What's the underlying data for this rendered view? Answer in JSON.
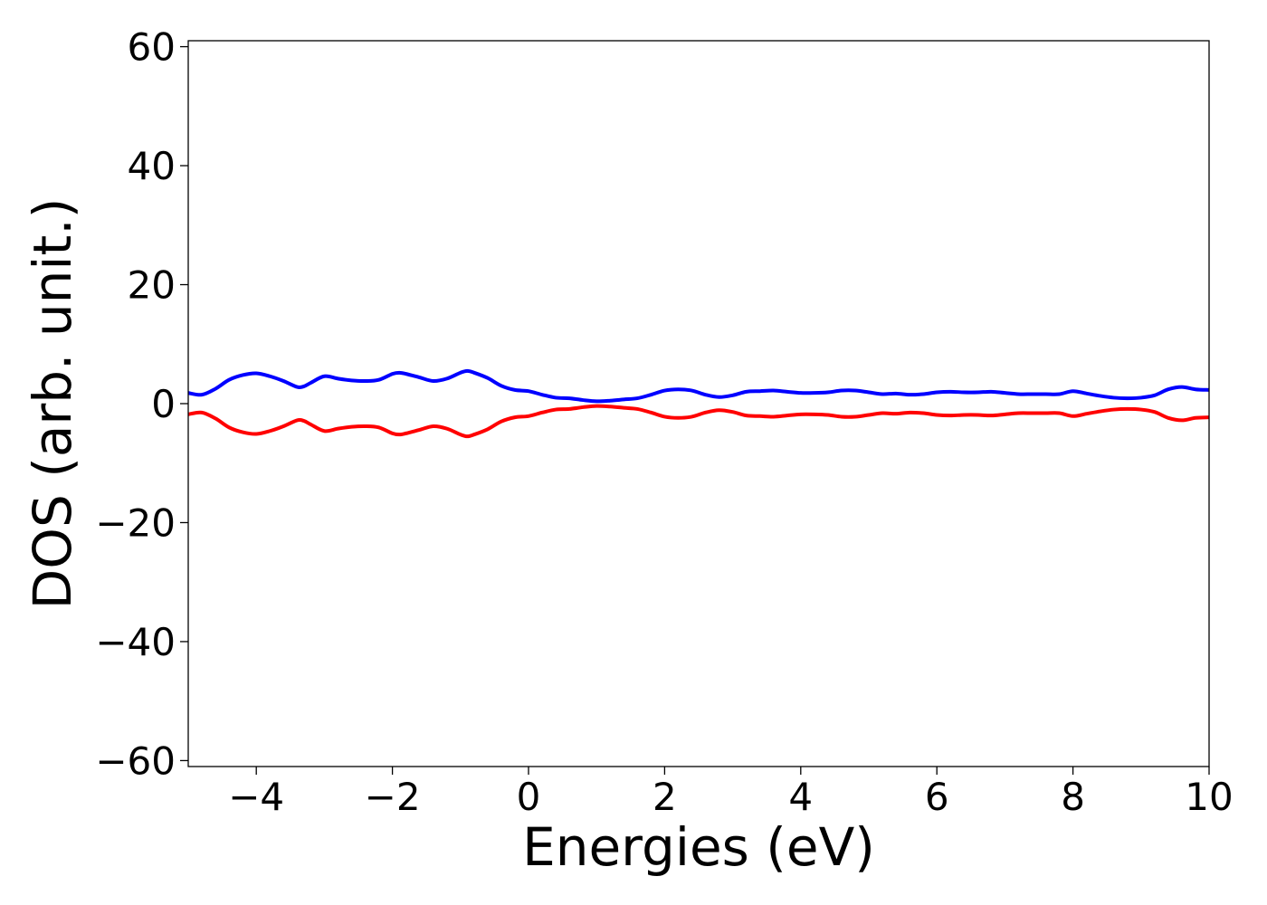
{
  "chart_data": {
    "type": "line",
    "xlabel": "Energies (eV)",
    "ylabel": "DOS (arb. unit.)",
    "xlim": [
      -5,
      10
    ],
    "ylim": [
      -61,
      61
    ],
    "xticks": [
      -4,
      -2,
      0,
      2,
      4,
      6,
      8,
      10
    ],
    "yticks": [
      60,
      40,
      20,
      0,
      -20,
      -40,
      -60
    ],
    "xtick_labels": [
      "−4",
      "−2",
      "0",
      "2",
      "4",
      "6",
      "8",
      "10"
    ],
    "ytick_labels": [
      "60",
      "40",
      "20",
      "0",
      "−20",
      "−40",
      "−60"
    ],
    "grid": false,
    "legend": null,
    "series": [
      {
        "color": "#0000ff",
        "x": [
          -5.0,
          -4.8,
          -4.6,
          -4.4,
          -4.2,
          -4.0,
          -3.8,
          -3.6,
          -3.4,
          -3.3,
          -3.2,
          -3.0,
          -2.8,
          -2.6,
          -2.4,
          -2.2,
          -2.0,
          -1.9,
          -1.8,
          -1.6,
          -1.4,
          -1.2,
          -1.0,
          -0.9,
          -0.8,
          -0.6,
          -0.4,
          -0.2,
          0.0,
          0.2,
          0.4,
          0.6,
          0.8,
          1.0,
          1.2,
          1.4,
          1.6,
          1.8,
          2.0,
          2.2,
          2.4,
          2.6,
          2.8,
          3.0,
          3.2,
          3.4,
          3.6,
          3.8,
          4.0,
          4.2,
          4.4,
          4.6,
          4.8,
          5.0,
          5.2,
          5.4,
          5.6,
          5.8,
          6.0,
          6.2,
          6.4,
          6.6,
          6.8,
          7.0,
          7.2,
          7.4,
          7.6,
          7.8,
          8.0,
          8.2,
          8.4,
          8.6,
          8.8,
          9.0,
          9.2,
          9.4,
          9.6,
          9.8,
          10.0
        ],
        "values": [
          1.8,
          1.5,
          2.5,
          4.0,
          4.8,
          5.1,
          4.6,
          3.8,
          2.8,
          2.9,
          3.5,
          4.6,
          4.2,
          3.9,
          3.8,
          4.0,
          5.0,
          5.2,
          5.0,
          4.4,
          3.8,
          4.2,
          5.2,
          5.5,
          5.2,
          4.3,
          3.0,
          2.3,
          2.1,
          1.5,
          1.0,
          0.9,
          0.6,
          0.4,
          0.5,
          0.7,
          0.9,
          1.5,
          2.2,
          2.4,
          2.2,
          1.5,
          1.1,
          1.4,
          2.0,
          2.1,
          2.2,
          2.0,
          1.8,
          1.8,
          1.9,
          2.2,
          2.2,
          1.9,
          1.6,
          1.7,
          1.5,
          1.6,
          1.9,
          2.0,
          1.9,
          1.9,
          2.0,
          1.8,
          1.6,
          1.6,
          1.6,
          1.6,
          2.1,
          1.7,
          1.3,
          1.0,
          0.9,
          1.0,
          1.4,
          2.4,
          2.8,
          2.4,
          2.3
        ],
        "closed": false
      },
      {
        "color": "#ff0000",
        "x": [
          -5.0,
          -4.8,
          -4.6,
          -4.4,
          -4.2,
          -4.0,
          -3.8,
          -3.6,
          -3.4,
          -3.3,
          -3.2,
          -3.0,
          -2.8,
          -2.6,
          -2.4,
          -2.2,
          -2.0,
          -1.9,
          -1.8,
          -1.6,
          -1.4,
          -1.2,
          -1.0,
          -0.9,
          -0.8,
          -0.6,
          -0.4,
          -0.2,
          0.0,
          0.2,
          0.4,
          0.6,
          0.8,
          1.0,
          1.2,
          1.4,
          1.6,
          1.8,
          2.0,
          2.2,
          2.4,
          2.6,
          2.8,
          3.0,
          3.2,
          3.4,
          3.6,
          3.8,
          4.0,
          4.2,
          4.4,
          4.6,
          4.8,
          5.0,
          5.2,
          5.4,
          5.6,
          5.8,
          6.0,
          6.2,
          6.4,
          6.6,
          6.8,
          7.0,
          7.2,
          7.4,
          7.6,
          7.8,
          8.0,
          8.2,
          8.4,
          8.6,
          8.8,
          9.0,
          9.2,
          9.4,
          9.6,
          9.8,
          10.0
        ],
        "values": [
          -1.8,
          -1.5,
          -2.5,
          -4.0,
          -4.8,
          -5.1,
          -4.6,
          -3.8,
          -2.8,
          -2.9,
          -3.5,
          -4.6,
          -4.2,
          -3.9,
          -3.8,
          -4.0,
          -5.0,
          -5.2,
          -5.0,
          -4.4,
          -3.8,
          -4.2,
          -5.2,
          -5.5,
          -5.2,
          -4.3,
          -3.0,
          -2.3,
          -2.1,
          -1.5,
          -1.0,
          -0.9,
          -0.6,
          -0.4,
          -0.5,
          -0.7,
          -0.9,
          -1.5,
          -2.2,
          -2.4,
          -2.2,
          -1.5,
          -1.1,
          -1.4,
          -2.0,
          -2.1,
          -2.2,
          -2.0,
          -1.8,
          -1.8,
          -1.9,
          -2.2,
          -2.2,
          -1.9,
          -1.6,
          -1.7,
          -1.5,
          -1.6,
          -1.9,
          -2.0,
          -1.9,
          -1.9,
          -2.0,
          -1.8,
          -1.6,
          -1.6,
          -1.6,
          -1.6,
          -2.1,
          -1.7,
          -1.3,
          -1.0,
          -0.9,
          -1.0,
          -1.4,
          -2.4,
          -2.8,
          -2.4,
          -2.3
        ]
      }
    ]
  }
}
